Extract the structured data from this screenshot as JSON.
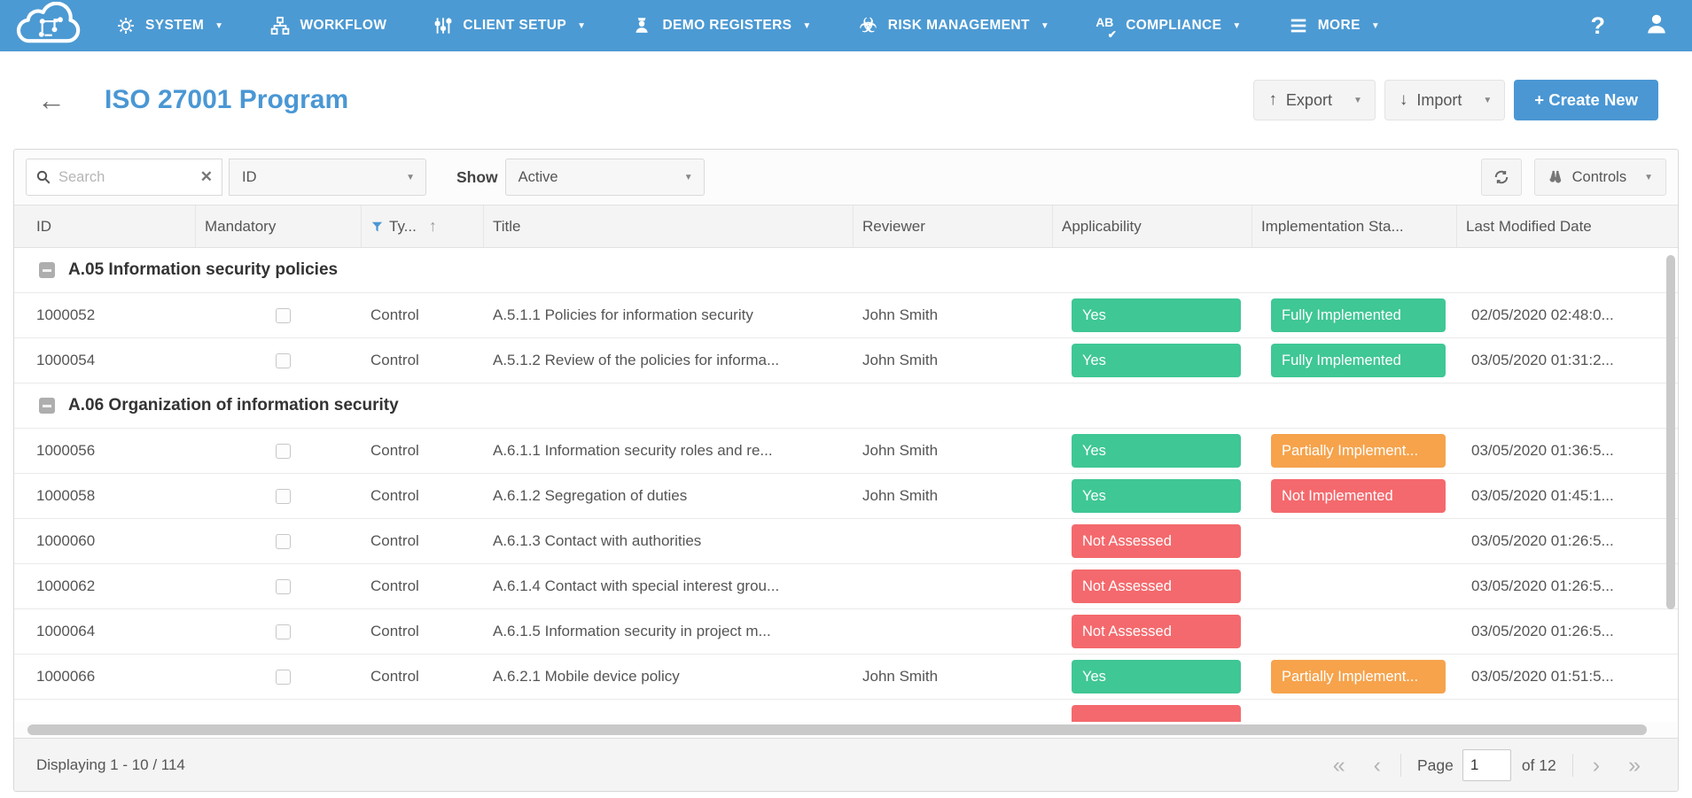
{
  "colors": {
    "nav_blue": "#4c9ad3",
    "accent_blue": "#4a97d4",
    "green": "#3fc795",
    "orange": "#f6a34c",
    "red": "#f4696d"
  },
  "nav": {
    "items": [
      {
        "label": "SYSTEM",
        "icon": "gear-icon",
        "caret": true
      },
      {
        "label": "WORKFLOW",
        "icon": "workflow-icon",
        "caret": false
      },
      {
        "label": "CLIENT SETUP",
        "icon": "sliders-icon",
        "caret": true
      },
      {
        "label": "DEMO REGISTERS",
        "icon": "graduate-icon",
        "caret": true
      },
      {
        "label": "RISK MANAGEMENT",
        "icon": "biohazard-icon",
        "caret": true
      },
      {
        "label": "COMPLIANCE",
        "icon": "ab-check-icon",
        "caret": true
      },
      {
        "label": "MORE",
        "icon": "menu-icon",
        "caret": true
      }
    ],
    "help_icon": "?"
  },
  "header": {
    "title": "ISO 27001 Program",
    "back_icon": "←",
    "export_label": "Export",
    "export_icon": "↑",
    "import_label": "Import",
    "import_icon": "↓",
    "create_new_label": "+ Create New",
    "caret_icon": "▼"
  },
  "toolbar": {
    "search_placeholder": "Search",
    "clear_icon": "✕",
    "filter_value": "ID",
    "show_label": "Show",
    "show_value": "Active",
    "controls_label": "Controls",
    "caret_icon": "▼"
  },
  "table": {
    "sort_icon": "↑",
    "columns": [
      {
        "label": "ID"
      },
      {
        "label": "Mandatory"
      },
      {
        "label": "Ty...",
        "filter": true,
        "sort": "asc"
      },
      {
        "label": "Title"
      },
      {
        "label": "Reviewer"
      },
      {
        "label": "Applicability"
      },
      {
        "label": "Implementation Sta..."
      },
      {
        "label": "Last Modified Date"
      }
    ],
    "rows": [
      {
        "kind": "group",
        "label": "A.05 Information security policies"
      },
      {
        "kind": "row",
        "id": "1000052",
        "type": "Control",
        "title": "A.5.1.1 Policies for information security",
        "reviewer": "John Smith",
        "applicability": {
          "label": "Yes",
          "color": "green"
        },
        "implementation": {
          "label": "Fully Implemented",
          "color": "green"
        },
        "modified": "02/05/2020 02:48:0..."
      },
      {
        "kind": "row",
        "id": "1000054",
        "type": "Control",
        "title": "A.5.1.2 Review of the policies for informa...",
        "reviewer": "John Smith",
        "applicability": {
          "label": "Yes",
          "color": "green"
        },
        "implementation": {
          "label": "Fully Implemented",
          "color": "green"
        },
        "modified": "03/05/2020 01:31:2..."
      },
      {
        "kind": "group",
        "label": "A.06 Organization of information security"
      },
      {
        "kind": "row",
        "id": "1000056",
        "type": "Control",
        "title": "A.6.1.1 Information security roles and re...",
        "reviewer": "John Smith",
        "applicability": {
          "label": "Yes",
          "color": "green"
        },
        "implementation": {
          "label": "Partially Implement...",
          "color": "orange"
        },
        "modified": "03/05/2020 01:36:5..."
      },
      {
        "kind": "row",
        "id": "1000058",
        "type": "Control",
        "title": "A.6.1.2 Segregation of duties",
        "reviewer": "John Smith",
        "applicability": {
          "label": "Yes",
          "color": "green"
        },
        "implementation": {
          "label": "Not Implemented",
          "color": "red"
        },
        "modified": "03/05/2020 01:45:1..."
      },
      {
        "kind": "row",
        "id": "1000060",
        "type": "Control",
        "title": "A.6.1.3 Contact with authorities",
        "reviewer": "",
        "applicability": {
          "label": "Not Assessed",
          "color": "red"
        },
        "implementation": null,
        "modified": "03/05/2020 01:26:5..."
      },
      {
        "kind": "row",
        "id": "1000062",
        "type": "Control",
        "title": "A.6.1.4 Contact with special interest grou...",
        "reviewer": "",
        "applicability": {
          "label": "Not Assessed",
          "color": "red"
        },
        "implementation": null,
        "modified": "03/05/2020 01:26:5..."
      },
      {
        "kind": "row",
        "id": "1000064",
        "type": "Control",
        "title": "A.6.1.5 Information security in project m...",
        "reviewer": "",
        "applicability": {
          "label": "Not Assessed",
          "color": "red"
        },
        "implementation": null,
        "modified": "03/05/2020 01:26:5..."
      },
      {
        "kind": "row",
        "id": "1000066",
        "type": "Control",
        "title": "A.6.2.1 Mobile device policy",
        "reviewer": "John Smith",
        "applicability": {
          "label": "Yes",
          "color": "green"
        },
        "implementation": {
          "label": "Partially Implement...",
          "color": "orange"
        },
        "modified": "03/05/2020 01:51:5..."
      },
      {
        "kind": "row",
        "partial": true,
        "id": "",
        "type": "",
        "title": "",
        "reviewer": "",
        "applicability": {
          "label": "",
          "color": "red"
        },
        "implementation": null,
        "modified": ""
      }
    ]
  },
  "footer": {
    "displaying": "Displaying 1 - 10 / 114",
    "first_icon": "«",
    "prev_icon": "‹",
    "page_label": "Page",
    "page_value": "1",
    "of_label": "of 12",
    "next_icon": "›",
    "last_icon": "»"
  }
}
